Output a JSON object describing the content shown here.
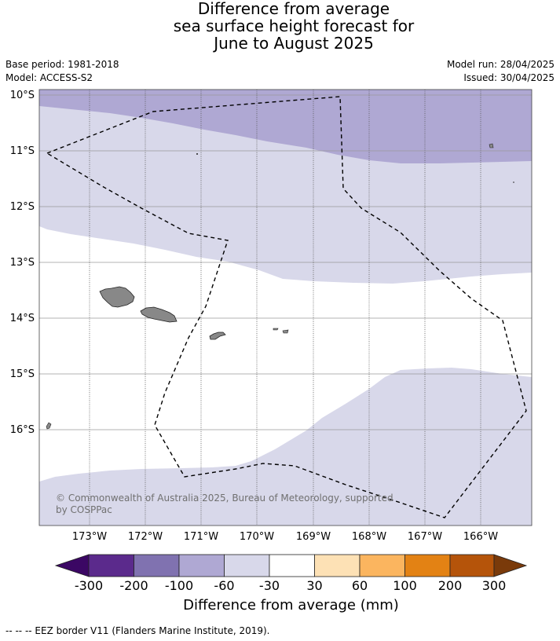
{
  "header": {
    "title_line1": "Difference from average",
    "title_line2": "sea surface height forecast for",
    "title_line3": "June to August 2025",
    "base_period": "Base period: 1981-2018",
    "model": "Model: ACCESS-S2",
    "model_run": "Model run: 28/04/2025",
    "issued": "Issued: 30/04/2025"
  },
  "map": {
    "lat_labels": [
      "10°S",
      "11°S",
      "12°S",
      "13°S",
      "14°S",
      "15°S",
      "16°S"
    ],
    "lon_labels": [
      "173°W",
      "172°W",
      "171°W",
      "170°W",
      "169°W",
      "168°W",
      "167°W",
      "166°W"
    ],
    "copyright": "© Commonwealth of Australia 2025, Bureau of Meteorology, supported",
    "copyright_line2": "by COSPPac"
  },
  "colorbar": {
    "title": "Difference from average (mm)",
    "tick_labels": [
      "-300",
      "-200",
      "-100",
      "-60",
      "-30",
      "30",
      "60",
      "100",
      "200",
      "300"
    ],
    "colors": [
      "#3b0764",
      "#5b2a8c",
      "#8072b0",
      "#afa8d3",
      "#d8d8ea",
      "#ffffff",
      "#fde1b5",
      "#fbb55f",
      "#e38214",
      "#b5540a",
      "#7a3a0a"
    ]
  },
  "footer": {
    "legend": "--  --  -- EEZ border V11 (Flanders Marine Institute, 2019)."
  }
}
